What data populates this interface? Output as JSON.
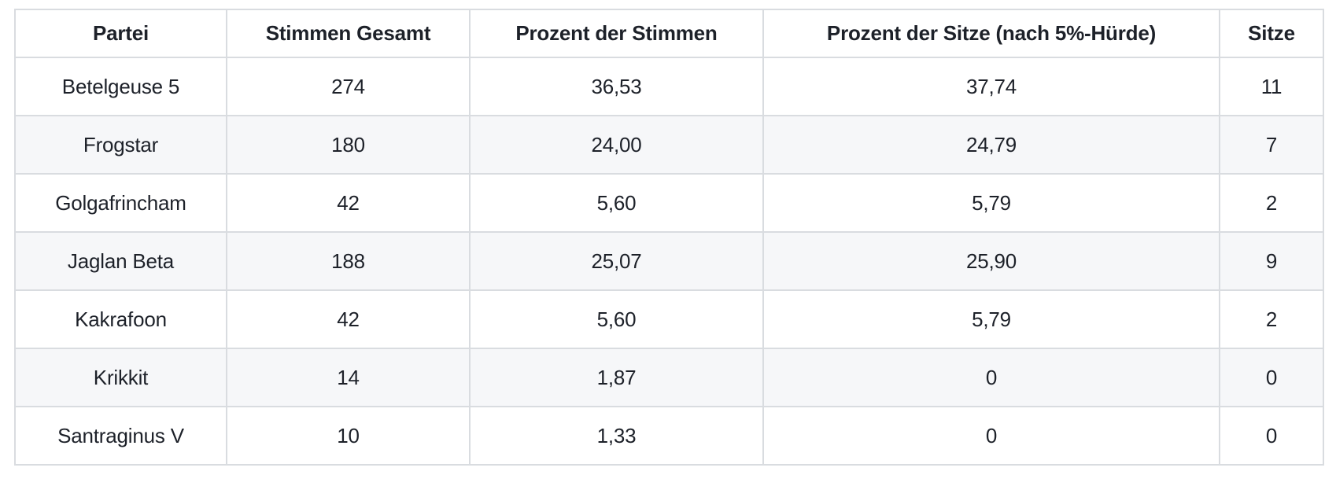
{
  "table": {
    "columns": [
      "Partei",
      "Stimmen Gesamt",
      "Prozent der Stimmen",
      "Prozent der Sitze (nach 5%-Hürde)",
      "Sitze"
    ],
    "rows": [
      [
        "Betelgeuse 5",
        "274",
        "36,53",
        "37,74",
        "11"
      ],
      [
        "Frogstar",
        "180",
        "24,00",
        "24,79",
        "7"
      ],
      [
        "Golgafrincham",
        "42",
        "5,60",
        "5,79",
        "2"
      ],
      [
        "Jaglan Beta",
        "188",
        "25,07",
        "25,90",
        "9"
      ],
      [
        "Kakrafoon",
        "42",
        "5,60",
        "5,79",
        "2"
      ],
      [
        "Krikkit",
        "14",
        "1,87",
        "0",
        "0"
      ],
      [
        "Santraginus V",
        "10",
        "1,33",
        "0",
        "0"
      ]
    ]
  },
  "colors": {
    "background": "#ffffff",
    "border": "#d9dce0",
    "stripe": "#f6f7f9",
    "text": "#1d2129"
  },
  "chart_data": {
    "type": "table",
    "title": "",
    "columns": [
      "Partei",
      "Stimmen Gesamt",
      "Prozent der Stimmen",
      "Prozent der Sitze (nach 5%-Hürde)",
      "Sitze"
    ],
    "rows": [
      {
        "partei": "Betelgeuse 5",
        "stimmen_gesamt": 274,
        "prozent_der_stimmen": "36,53",
        "prozent_der_sitze": "37,74",
        "sitze": 11
      },
      {
        "partei": "Frogstar",
        "stimmen_gesamt": 180,
        "prozent_der_stimmen": "24,00",
        "prozent_der_sitze": "24,79",
        "sitze": 7
      },
      {
        "partei": "Golgafrincham",
        "stimmen_gesamt": 42,
        "prozent_der_stimmen": "5,60",
        "prozent_der_sitze": "5,79",
        "sitze": 2
      },
      {
        "partei": "Jaglan Beta",
        "stimmen_gesamt": 188,
        "prozent_der_stimmen": "25,07",
        "prozent_der_sitze": "25,90",
        "sitze": 9
      },
      {
        "partei": "Kakrafoon",
        "stimmen_gesamt": 42,
        "prozent_der_stimmen": "5,60",
        "prozent_der_sitze": "5,79",
        "sitze": 2
      },
      {
        "partei": "Krikkit",
        "stimmen_gesamt": 14,
        "prozent_der_stimmen": "1,87",
        "prozent_der_sitze": "0",
        "sitze": 0
      },
      {
        "partei": "Santraginus V",
        "stimmen_gesamt": 10,
        "prozent_der_stimmen": "1,33",
        "prozent_der_sitze": "0",
        "sitze": 0
      }
    ]
  }
}
